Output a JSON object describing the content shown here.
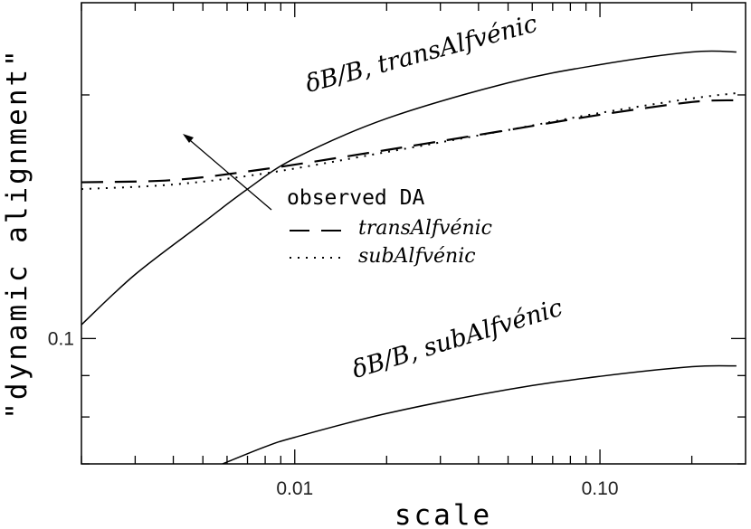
{
  "chart_data": {
    "type": "line",
    "title": "",
    "xlabel": "scale",
    "ylabel": "\"dynamic alignment\"",
    "x_scale": "log",
    "y_scale": "log",
    "xlim": [
      0.002,
      0.3
    ],
    "ylim": [
      0.07,
      0.26
    ],
    "x_ticklabels": [
      {
        "value": 0.01,
        "label": "0.01"
      },
      {
        "value": 0.1,
        "label": "0.10"
      }
    ],
    "y_ticklabels": [
      {
        "value": 0.1,
        "label": "0.1"
      }
    ],
    "grid": false,
    "legend_position": "center",
    "legend_title": "observed DA",
    "series": [
      {
        "name": "transAlfvénic",
        "style": "dashed",
        "x": [
          0.002,
          0.004,
          0.008,
          0.02,
          0.05,
          0.1,
          0.2,
          0.28
        ],
        "y": [
          0.156,
          0.157,
          0.162,
          0.171,
          0.181,
          0.189,
          0.196,
          0.197
        ]
      },
      {
        "name": "subAlfvénic",
        "style": "dotted",
        "x": [
          0.002,
          0.004,
          0.008,
          0.02,
          0.05,
          0.1,
          0.2,
          0.28
        ],
        "y": [
          0.153,
          0.155,
          0.16,
          0.17,
          0.181,
          0.19,
          0.198,
          0.201
        ]
      },
      {
        "name": "δB/B, transAlfvénic",
        "style": "solid",
        "x": [
          0.002,
          0.003,
          0.005,
          0.007,
          0.01,
          0.02,
          0.05,
          0.1,
          0.2,
          0.28
        ],
        "y": [
          0.104,
          0.12,
          0.139,
          0.153,
          0.167,
          0.187,
          0.207,
          0.218,
          0.226,
          0.226
        ]
      },
      {
        "name": "δB/B, subAlfvénic",
        "style": "solid",
        "x": [
          0.0058,
          0.008,
          0.01,
          0.02,
          0.05,
          0.1,
          0.2,
          0.28
        ],
        "y": [
          0.07,
          0.0735,
          0.0755,
          0.0808,
          0.0865,
          0.0898,
          0.0923,
          0.0925
        ]
      }
    ],
    "annotations": [
      {
        "text": "δB/B, transAlfvénic"
      },
      {
        "text": "δB/B, subAlfvénic"
      }
    ]
  }
}
